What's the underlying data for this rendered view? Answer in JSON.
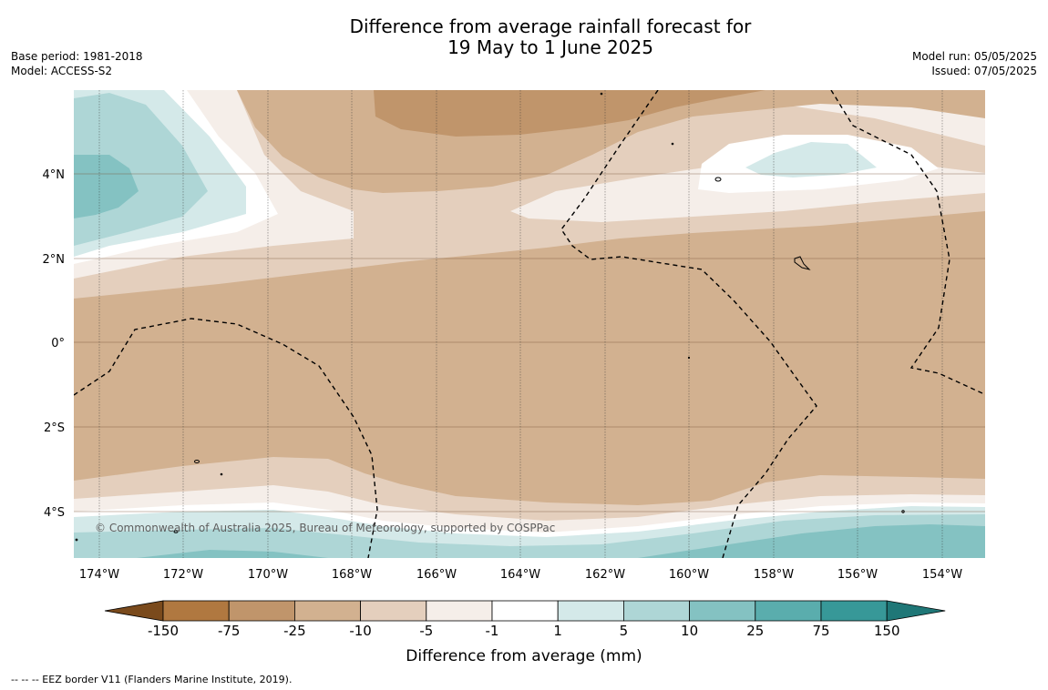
{
  "title_line1": "Difference from average rainfall forecast for",
  "title_line2": "19 May to 1 June 2025",
  "meta_left": {
    "base_period": "Base period: 1981-2018",
    "model": "Model: ACCESS-S2"
  },
  "meta_right": {
    "model_run": "Model run: 05/05/2025",
    "issued": "Issued: 07/05/2025"
  },
  "copyright": "© Commonwealth of Australia 2025, Bureau of Meteorology, supported by COSPPac",
  "map": {
    "lat_labels": [
      "4°N",
      "2°N",
      "0°",
      "2°S",
      "4°S"
    ],
    "lon_labels": [
      "174°W",
      "172°W",
      "170°W",
      "168°W",
      "166°W",
      "164°W",
      "162°W",
      "160°W",
      "158°W",
      "156°W",
      "154°W"
    ]
  },
  "colorbar": {
    "label": "Difference from average (mm)",
    "ticks": [
      "-150",
      "-75",
      "-25",
      "-10",
      "-5",
      "-1",
      "1",
      "5",
      "10",
      "25",
      "75",
      "150"
    ],
    "colors": [
      "#7a4a1c",
      "#b07840",
      "#c0956b",
      "#d2b190",
      "#e4cfbd",
      "#f5eee9",
      "#ffffff",
      "#d4e9e9",
      "#aed6d6",
      "#84c2c2",
      "#5aadad",
      "#379898",
      "#1f7777"
    ]
  },
  "footnote": "-- -- -- EEZ border V11 (Flanders Marine Institute, 2019)."
}
